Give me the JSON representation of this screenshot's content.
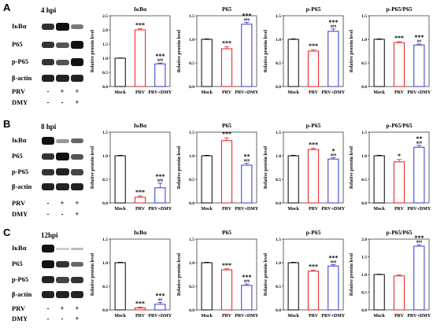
{
  "rows": [
    {
      "letter": "A",
      "blot": {
        "time_label": "4 hpi",
        "proteins": [
          "IκBα",
          "P65",
          "p-P65",
          "β-actin"
        ],
        "treatments": [
          {
            "name": "PRV",
            "signs": [
              "-",
              "+",
              "+"
            ]
          },
          {
            "name": "DMY",
            "signs": [
              "-",
              "-",
              "+"
            ]
          }
        ]
      }
    },
    {
      "letter": "B",
      "blot": {
        "time_label": "8 hpi",
        "proteins": [
          "IκBα",
          "P65",
          "p-P65",
          "β-actin"
        ],
        "treatments": [
          {
            "name": "PRV",
            "signs": [
              "-",
              "+",
              "+"
            ]
          },
          {
            "name": "DMY",
            "signs": [
              "-",
              "-",
              "+"
            ]
          }
        ]
      }
    },
    {
      "letter": "C",
      "blot": {
        "time_label": "12hpi",
        "proteins": [
          "IκBα",
          "P65",
          "p-P65",
          "β-actin"
        ],
        "treatments": [
          {
            "name": "PRV",
            "signs": [
              "-",
              "+",
              "+"
            ]
          },
          {
            "name": "DMY",
            "signs": [
              "-",
              "-",
              "+"
            ]
          }
        ]
      }
    }
  ],
  "bar_colors": [
    "#000000",
    "#e8191d",
    "#3135d6"
  ],
  "chart_data": [
    {
      "type": "bar",
      "title": "IκBα",
      "ylabel": "Relative protein level",
      "categories": [
        "Mock",
        "PRV",
        "PRV+DMY"
      ],
      "values": [
        1.0,
        2.0,
        0.8
      ],
      "errors": [
        0.01,
        0.04,
        0.03
      ],
      "ylim": [
        0,
        2.5
      ],
      "yticks": [
        "0.0",
        "0.5",
        "1.0",
        "1.5",
        "2.0",
        "2.5"
      ],
      "sig_top": [
        "",
        "***",
        "***"
      ],
      "sig_bottom": [
        "",
        "",
        "###"
      ]
    },
    {
      "type": "bar",
      "title": "P65",
      "ylabel": "Relative protein level",
      "categories": [
        "Mock",
        "PRV",
        "PRV+DMY"
      ],
      "values": [
        1.0,
        0.8,
        1.32
      ],
      "errors": [
        0.01,
        0.04,
        0.04
      ],
      "ylim": [
        0,
        1.5
      ],
      "yticks": [
        "0.0",
        "0.5",
        "1.0",
        "1.5"
      ],
      "sig_top": [
        "",
        "***",
        "***"
      ],
      "sig_bottom": [
        "",
        "",
        "###"
      ]
    },
    {
      "type": "bar",
      "title": "p-P65",
      "ylabel": "Relative protein level",
      "categories": [
        "Mock",
        "PRV",
        "PRV+DMY"
      ],
      "values": [
        1.0,
        0.75,
        1.17
      ],
      "errors": [
        0.01,
        0.03,
        0.05
      ],
      "ylim": [
        0,
        1.5
      ],
      "yticks": [
        "0.0",
        "0.5",
        "1.0",
        "1.5"
      ],
      "sig_top": [
        "",
        "***",
        "***"
      ],
      "sig_bottom": [
        "",
        "",
        "###"
      ]
    },
    {
      "type": "bar",
      "title": "p-P65/P65",
      "ylabel": "Relative protein level",
      "categories": [
        "Mock",
        "PRV",
        "PRV+DMY"
      ],
      "values": [
        1.0,
        0.93,
        0.88
      ],
      "errors": [
        0.01,
        0.02,
        0.02
      ],
      "ylim": [
        0,
        1.5
      ],
      "yticks": [
        "0.0",
        "0.5",
        "1.0",
        "1.5"
      ],
      "sig_top": [
        "",
        "***",
        "***"
      ],
      "sig_bottom": [
        "",
        "",
        "##"
      ]
    },
    {
      "type": "bar",
      "title": "IκBα",
      "ylabel": "Relative protein level",
      "categories": [
        "Mock",
        "PRV",
        "PRV+DMY"
      ],
      "values": [
        1.0,
        0.12,
        0.32
      ],
      "errors": [
        0.01,
        0.03,
        0.1
      ],
      "ylim": [
        0,
        1.5
      ],
      "yticks": [
        "0.0",
        "0.5",
        "1.0",
        "1.5"
      ],
      "sig_top": [
        "",
        "***",
        "***"
      ],
      "sig_bottom": [
        "",
        "",
        "###"
      ]
    },
    {
      "type": "bar",
      "title": "P65",
      "ylabel": "Relative protein level",
      "categories": [
        "Mock",
        "PRV",
        "PRV+DMY"
      ],
      "values": [
        1.0,
        1.32,
        0.8
      ],
      "errors": [
        0.01,
        0.06,
        0.04
      ],
      "ylim": [
        0,
        1.5
      ],
      "yticks": [
        "0.0",
        "0.5",
        "1.0",
        "1.5"
      ],
      "sig_top": [
        "",
        "***",
        "**"
      ],
      "sig_bottom": [
        "",
        "",
        "###"
      ]
    },
    {
      "type": "bar",
      "title": "p-P65",
      "ylabel": "Relative protein level",
      "categories": [
        "Mock",
        "PRV",
        "PRV+DMY"
      ],
      "values": [
        1.0,
        1.13,
        0.93
      ],
      "errors": [
        0.01,
        0.03,
        0.03
      ],
      "ylim": [
        0,
        1.5
      ],
      "yticks": [
        "0.0",
        "0.5",
        "1.0",
        "1.5"
      ],
      "sig_top": [
        "",
        "***",
        "*"
      ],
      "sig_bottom": [
        "",
        "",
        "###"
      ]
    },
    {
      "type": "bar",
      "title": "p-P65/P65",
      "ylabel": "Relative protein level",
      "categories": [
        "Mock",
        "PRV",
        "PRV+DMY"
      ],
      "values": [
        1.0,
        0.87,
        1.18
      ],
      "errors": [
        0.01,
        0.05,
        0.04
      ],
      "ylim": [
        0,
        1.5
      ],
      "yticks": [
        "0.0",
        "0.5",
        "1.0",
        "1.5"
      ],
      "sig_top": [
        "",
        "*",
        "**"
      ],
      "sig_bottom": [
        "",
        "",
        "###"
      ]
    },
    {
      "type": "bar",
      "title": "IκBα",
      "ylabel": "Relative protein level",
      "categories": [
        "Mock",
        "PRV",
        "PRV+DMY"
      ],
      "values": [
        1.0,
        0.04,
        0.12
      ],
      "errors": [
        0.01,
        0.02,
        0.04
      ],
      "ylim": [
        0,
        1.5
      ],
      "yticks": [
        "0.0",
        "0.5",
        "1.0",
        "1.5"
      ],
      "sig_top": [
        "",
        "***",
        "***"
      ],
      "sig_bottom": [
        "",
        "",
        "##"
      ]
    },
    {
      "type": "bar",
      "title": "P65",
      "ylabel": "Relative protein level",
      "categories": [
        "Mock",
        "PRV",
        "PRV+DMY"
      ],
      "values": [
        1.0,
        0.85,
        0.52
      ],
      "errors": [
        0.01,
        0.02,
        0.03
      ],
      "ylim": [
        0,
        1.5
      ],
      "yticks": [
        "0.0",
        "0.5",
        "1.0",
        "1.5"
      ],
      "sig_top": [
        "",
        "***",
        "***"
      ],
      "sig_bottom": [
        "",
        "",
        "###"
      ]
    },
    {
      "type": "bar",
      "title": "p-P65",
      "ylabel": "Relative protein level",
      "categories": [
        "Mock",
        "PRV",
        "PRV+DMY"
      ],
      "values": [
        1.0,
        0.82,
        0.93
      ],
      "errors": [
        0.01,
        0.02,
        0.03
      ],
      "ylim": [
        0,
        1.5
      ],
      "yticks": [
        "0.0",
        "0.5",
        "1.0",
        "1.5"
      ],
      "sig_top": [
        "",
        "***",
        "***"
      ],
      "sig_bottom": [
        "",
        "",
        "###"
      ]
    },
    {
      "type": "bar",
      "title": "p-P65/P65",
      "ylabel": "Relative protein level",
      "categories": [
        "Mock",
        "PRV",
        "PRV+DMY"
      ],
      "values": [
        1.0,
        0.96,
        1.8
      ],
      "errors": [
        0.01,
        0.03,
        0.04
      ],
      "ylim": [
        0,
        2.0
      ],
      "yticks": [
        "0.0",
        "0.5",
        "1.0",
        "1.5",
        "2.0"
      ],
      "sig_top": [
        "",
        "",
        "***"
      ],
      "sig_bottom": [
        "",
        "",
        "###"
      ]
    }
  ]
}
